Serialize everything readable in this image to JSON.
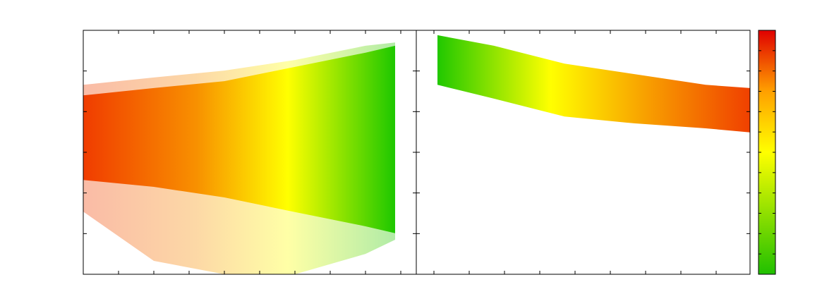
{
  "chart_data": [
    {
      "type": "band",
      "xlim": [
        0,
        9.44
      ],
      "ylim": [
        0,
        6
      ],
      "xticks": [
        1,
        2,
        3,
        4,
        5,
        6,
        7,
        8,
        9
      ],
      "yticks": [
        1,
        2,
        3,
        4,
        5
      ],
      "color_stops": [
        {
          "x": 0,
          "color": "#f03c00"
        },
        {
          "x": 3.2,
          "color": "#f89000"
        },
        {
          "x": 5.8,
          "color": "#ffff00"
        },
        {
          "x": 8.8,
          "color": "#20c800"
        }
      ],
      "series": [
        {
          "x": [
            0,
            2,
            4,
            6,
            8,
            8.84
          ],
          "lower": [
            1.54,
            0.33,
            0,
            0,
            0.5,
            0.85
          ],
          "upper": [
            4.66,
            4.84,
            5.01,
            5.27,
            5.62,
            5.7
          ],
          "opacity": 0.35
        },
        {
          "x": [
            0,
            2,
            4,
            6,
            8,
            8.84
          ],
          "lower": [
            2.32,
            2.15,
            1.89,
            1.53,
            1.18,
            1.01
          ],
          "upper": [
            4.4,
            4.58,
            4.75,
            5.1,
            5.45,
            5.62
          ],
          "opacity": 1
        }
      ]
    },
    {
      "type": "band",
      "xlim": [
        0,
        9.46
      ],
      "ylim": [
        0,
        6
      ],
      "xticks": [
        0.5,
        1.5,
        2.5,
        3.5,
        4.5,
        5.5,
        6.5,
        7.5,
        8.5
      ],
      "yticks": [
        1,
        2,
        3,
        4,
        5
      ],
      "color_stops": [
        {
          "x": 0.6,
          "color": "#20c800"
        },
        {
          "x": 3.8,
          "color": "#ffff00"
        },
        {
          "x": 6.5,
          "color": "#f8a000"
        },
        {
          "x": 9.46,
          "color": "#f04000"
        }
      ],
      "series": [
        {
          "x": [
            0.6,
            2.2,
            4.2,
            6.2,
            8.2,
            9.46
          ],
          "lower": [
            4.66,
            4.32,
            3.88,
            3.71,
            3.59,
            3.49
          ],
          "upper": [
            5.88,
            5.62,
            5.18,
            4.92,
            4.66,
            4.58
          ],
          "opacity": 1
        }
      ]
    },
    {
      "type": "colorbar",
      "ylim": [
        0,
        12
      ],
      "yticks": [
        1,
        2,
        3,
        4,
        5,
        6,
        7,
        8,
        9,
        10,
        11
      ],
      "color_stops": [
        {
          "x": 0,
          "color": "#20c000"
        },
        {
          "x": 6,
          "color": "#ffff00"
        },
        {
          "x": 9,
          "color": "#ffa000"
        },
        {
          "x": 12,
          "color": "#e00000"
        }
      ]
    }
  ]
}
